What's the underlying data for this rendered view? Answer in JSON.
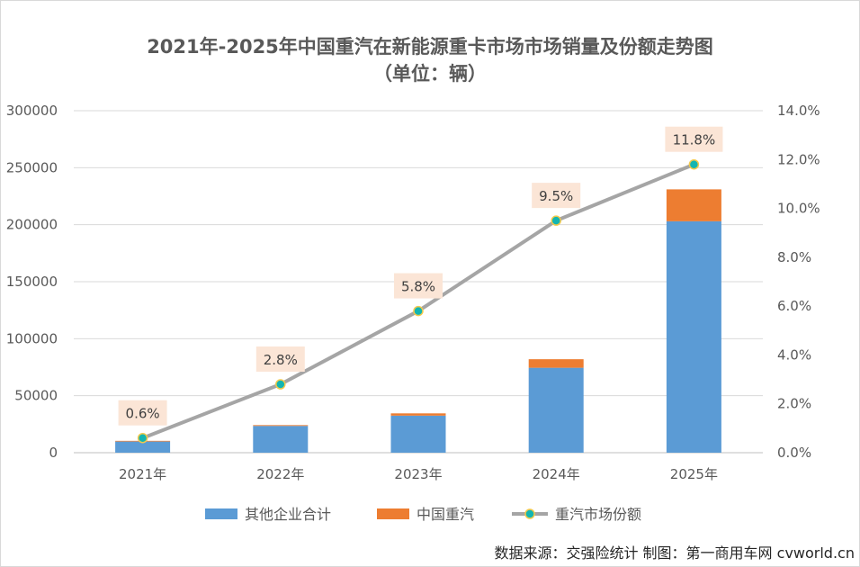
{
  "chart_data": {
    "type": "bar",
    "title": "2021年-2025年中国重汽在新能源重卡市场市场销量及份额走势图",
    "subtitle": "（单位：辆）",
    "categories": [
      "2021年",
      "2022年",
      "2023年",
      "2024年",
      "2025年"
    ],
    "series": [
      {
        "name": "其他企业合计",
        "kind": "stacked-bar",
        "axis": "left",
        "color": "#5b9bd5",
        "values": [
          9800,
          23500,
          32500,
          74500,
          203000
        ]
      },
      {
        "name": "中国重汽",
        "kind": "stacked-bar",
        "axis": "left",
        "color": "#ed7d31",
        "values": [
          600,
          700,
          2000,
          7500,
          28000
        ]
      },
      {
        "name": "重汽市场份额",
        "kind": "line",
        "axis": "right",
        "color": "#a5a5a5",
        "marker_color": "#13b5b1",
        "values": [
          0.6,
          2.8,
          5.8,
          9.5,
          11.8
        ],
        "labels": [
          "0.6%",
          "2.8%",
          "5.8%",
          "9.5%",
          "11.8%"
        ]
      }
    ],
    "y_left": {
      "lim": [
        0,
        300000
      ],
      "ticks": [
        "0",
        "50000",
        "100000",
        "150000",
        "200000",
        "250000",
        "300000"
      ]
    },
    "y_right": {
      "lim": [
        0,
        14
      ],
      "ticks": [
        "0.0%",
        "2.0%",
        "4.0%",
        "6.0%",
        "8.0%",
        "10.0%",
        "12.0%",
        "14.0%"
      ]
    },
    "grid": true,
    "legend_position": "bottom"
  },
  "source_text": "数据来源：交强险统计   制图：第一商用车网 cvworld.cn"
}
